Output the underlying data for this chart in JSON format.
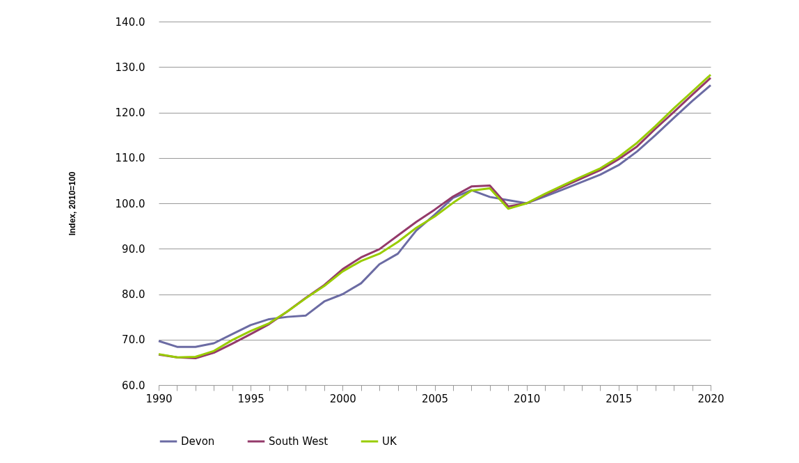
{
  "chart_data": {
    "type": "line",
    "ylabel": "Index, 2010=100",
    "x": [
      1990,
      1991,
      1992,
      1993,
      1994,
      1995,
      1996,
      1997,
      1998,
      1999,
      2000,
      2001,
      2002,
      2003,
      2004,
      2005,
      2006,
      2007,
      2008,
      2009,
      2010,
      2011,
      2012,
      2013,
      2014,
      2015,
      2016,
      2017,
      2018,
      2019,
      2020
    ],
    "series": [
      {
        "name": "Devon",
        "color": "#6b6ba3",
        "values": [
          69.7,
          68.4,
          68.4,
          69.2,
          71.2,
          73.2,
          74.5,
          75.0,
          75.3,
          78.4,
          80.0,
          82.4,
          86.6,
          88.9,
          94.0,
          97.5,
          101.2,
          102.9,
          101.4,
          100.7,
          100.0,
          101.5,
          103.1,
          104.7,
          106.3,
          108.4,
          111.4,
          115.0,
          118.8,
          122.5,
          126.0
        ]
      },
      {
        "name": "South West",
        "color": "#943a6a",
        "values": [
          66.7,
          66.1,
          65.9,
          67.1,
          69.1,
          71.2,
          73.4,
          76.2,
          79.2,
          82.0,
          85.5,
          88.1,
          89.9,
          92.9,
          95.9,
          98.6,
          101.5,
          103.7,
          103.9,
          99.3,
          100.0,
          101.9,
          103.7,
          105.5,
          107.3,
          109.7,
          112.5,
          116.4,
          120.1,
          123.9,
          127.6
        ]
      },
      {
        "name": "UK",
        "color": "#99cc00",
        "values": [
          66.8,
          66.1,
          66.2,
          67.5,
          69.9,
          71.9,
          73.6,
          76.2,
          79.1,
          81.8,
          85.0,
          87.3,
          88.9,
          91.5,
          94.6,
          97.1,
          100.1,
          102.8,
          103.3,
          98.8,
          100.0,
          102.1,
          104.0,
          105.9,
          107.7,
          110.2,
          113.3,
          117.0,
          120.9,
          124.6,
          128.3
        ]
      }
    ],
    "xlim": [
      1990,
      2020
    ],
    "xticks": [
      1990,
      {
        "value": 1991,
        "label": null
      },
      {
        "value": 1992,
        "label": null
      },
      {
        "value": 1993,
        "label": null
      },
      {
        "value": 1994,
        "label": null
      },
      1995,
      {
        "value": 1996,
        "label": null
      },
      {
        "value": 1997,
        "label": null
      },
      {
        "value": 1998,
        "label": null
      },
      {
        "value": 1999,
        "label": null
      },
      2000,
      {
        "value": 2001,
        "label": null
      },
      {
        "value": 2002,
        "label": null
      },
      {
        "value": 2003,
        "label": null
      },
      {
        "value": 2004,
        "label": null
      },
      2005,
      {
        "value": 2006,
        "label": null
      },
      {
        "value": 2007,
        "label": null
      },
      {
        "value": 2008,
        "label": null
      },
      {
        "value": 2009,
        "label": null
      },
      2010,
      {
        "value": 2011,
        "label": null
      },
      {
        "value": 2012,
        "label": null
      },
      {
        "value": 2013,
        "label": null
      },
      {
        "value": 2014,
        "label": null
      },
      2015,
      {
        "value": 2016,
        "label": null
      },
      {
        "value": 2017,
        "label": null
      },
      {
        "value": 2018,
        "label": null
      },
      {
        "value": 2019,
        "label": null
      },
      2020
    ],
    "ylim": [
      60,
      140
    ],
    "yticks": [
      {
        "value": 60,
        "label": "60.0"
      },
      {
        "value": 70,
        "label": "70.0"
      },
      {
        "value": 80,
        "label": "80.0"
      },
      {
        "value": 90,
        "label": "90.0"
      },
      {
        "value": 100,
        "label": "100.0"
      },
      {
        "value": 110,
        "label": "110.0"
      },
      {
        "value": 120,
        "label": "120.0"
      },
      {
        "value": 130,
        "label": "130.0"
      },
      {
        "value": 140,
        "label": "140.0"
      }
    ],
    "grid": "y",
    "legend": "bottom",
    "marker": "none",
    "line_style": "solid"
  }
}
